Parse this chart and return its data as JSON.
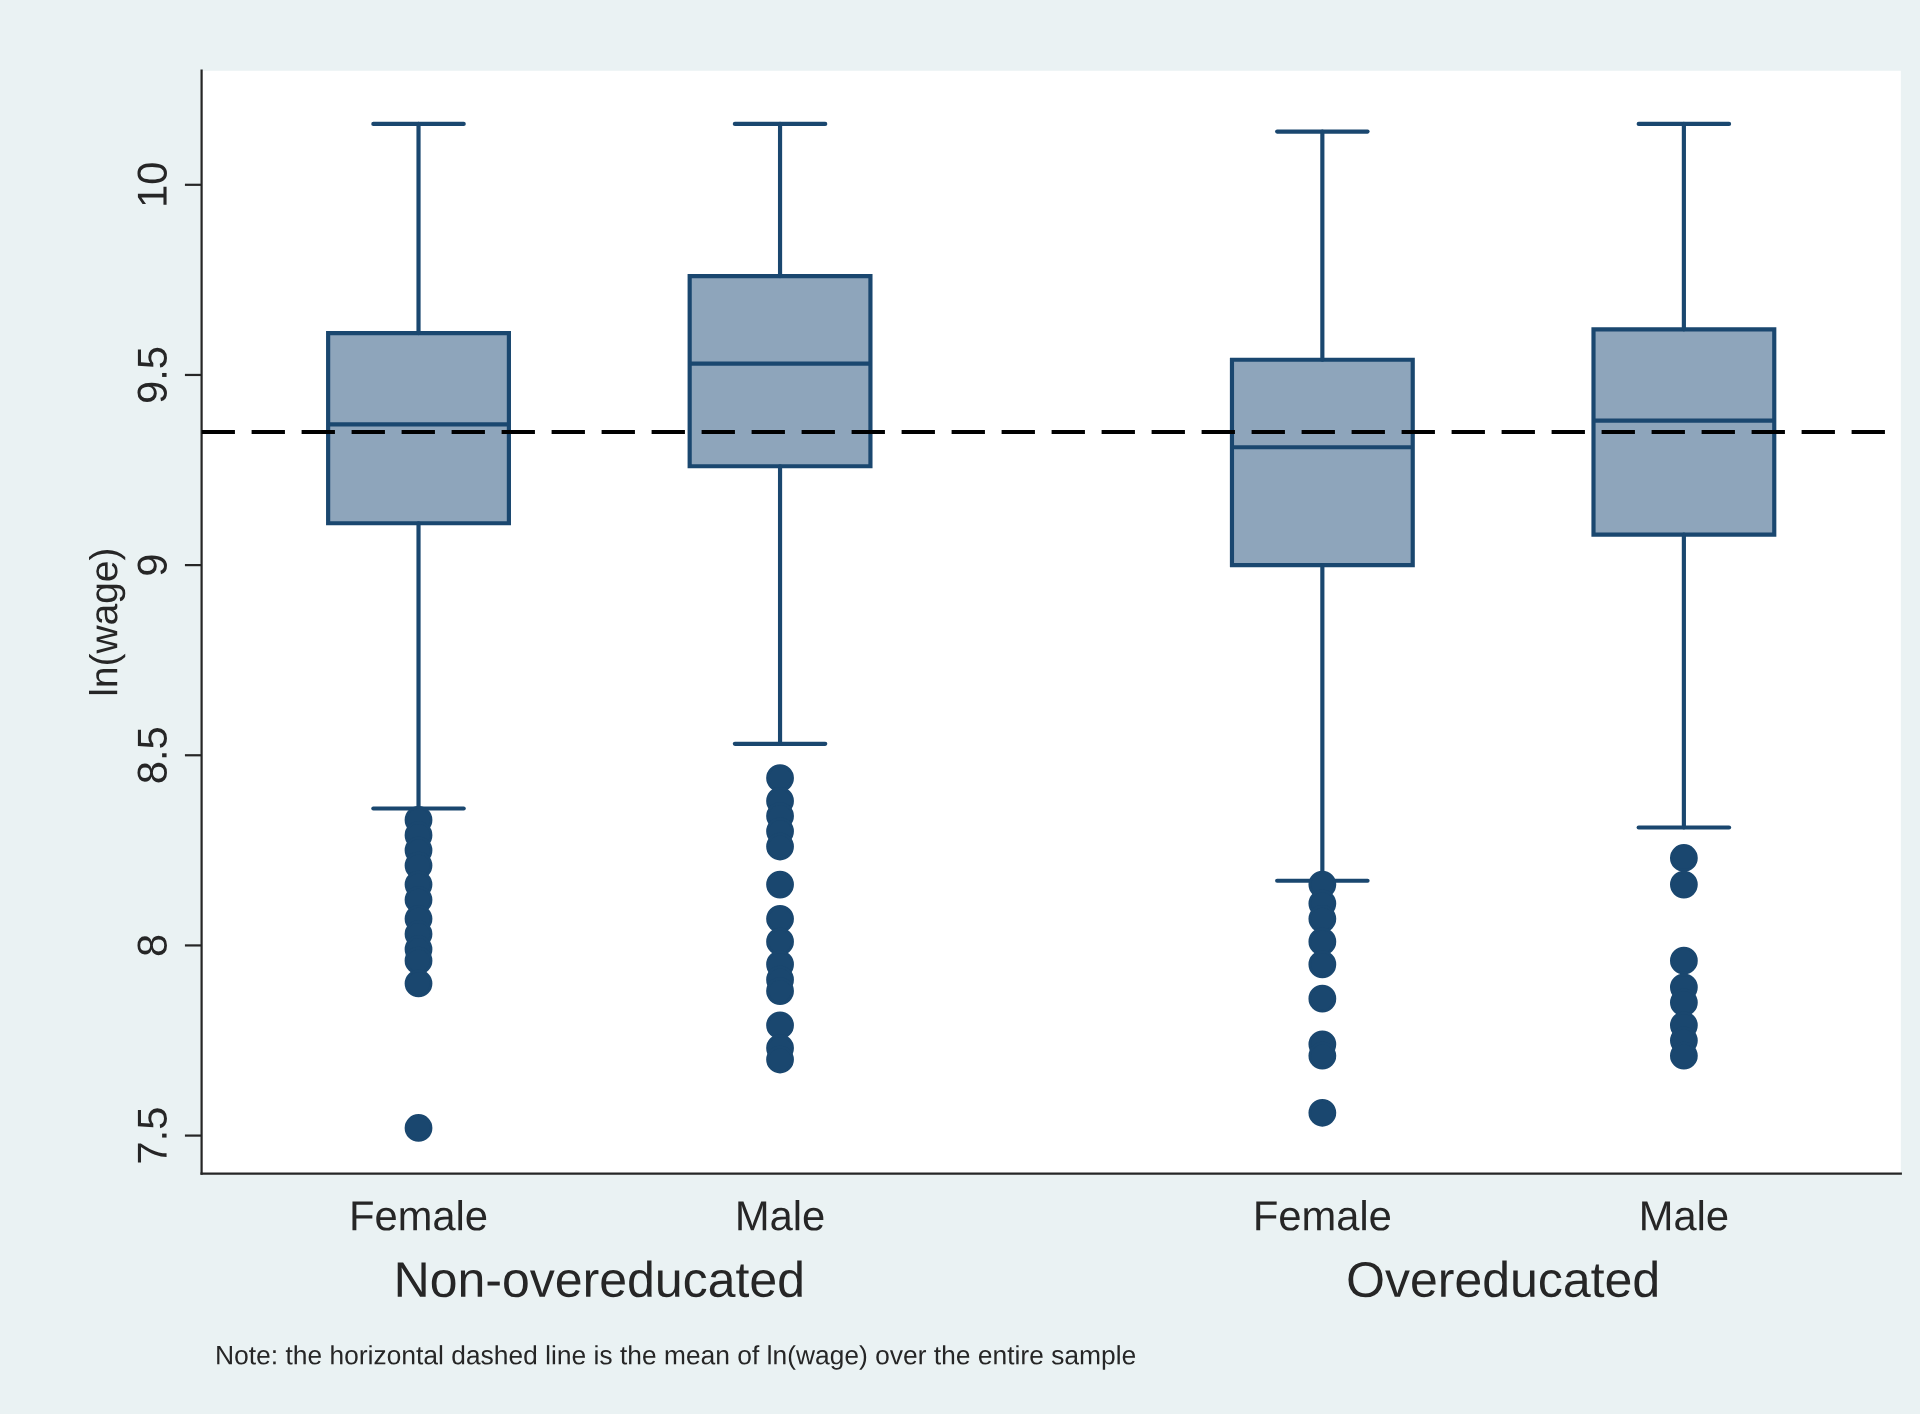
{
  "chart_data": {
    "type": "box",
    "ylabel": "ln(wage)",
    "categories": [
      "Female",
      "Male",
      "Female",
      "Male"
    ],
    "boxes": [
      {
        "low": 8.36,
        "q1": 9.11,
        "median": 9.37,
        "q3": 9.61,
        "high": 10.16,
        "outliers": [
          8.33,
          8.29,
          8.25,
          8.21,
          8.16,
          8.12,
          8.07,
          8.03,
          7.99,
          7.96,
          7.9,
          7.52
        ]
      },
      {
        "low": 8.53,
        "q1": 9.26,
        "median": 9.53,
        "q3": 9.76,
        "high": 10.16,
        "outliers": [
          8.44,
          8.38,
          8.34,
          8.3,
          8.26,
          8.16,
          8.07,
          8.01,
          7.95,
          7.91,
          7.88,
          7.79,
          7.73,
          7.7
        ]
      },
      {
        "low": 8.17,
        "q1": 9.0,
        "median": 9.31,
        "q3": 9.54,
        "high": 10.14,
        "outliers": [
          8.16,
          8.11,
          8.07,
          8.01,
          7.95,
          7.86,
          7.74,
          7.71,
          7.56
        ]
      },
      {
        "low": 8.31,
        "q1": 9.08,
        "median": 9.38,
        "q3": 9.62,
        "high": 10.16,
        "outliers": [
          8.23,
          8.16,
          7.96,
          7.89,
          7.85,
          7.79,
          7.75,
          7.71
        ]
      }
    ],
    "color": "#8ea5bb",
    "ylim": [
      7.4,
      10.3
    ],
    "yticks": [
      7.5,
      8,
      8.5,
      9,
      9.5,
      10
    ],
    "grid": false,
    "ref_lines": [
      {
        "axis": "y",
        "value": 9.35,
        "line_style": "dashed",
        "color": "#000000"
      }
    ],
    "annotations": [
      "Non-overeducated",
      "Overeducated",
      "Note: the horizontal dashed line is the mean of ln(wage) over the entire sample"
    ]
  }
}
